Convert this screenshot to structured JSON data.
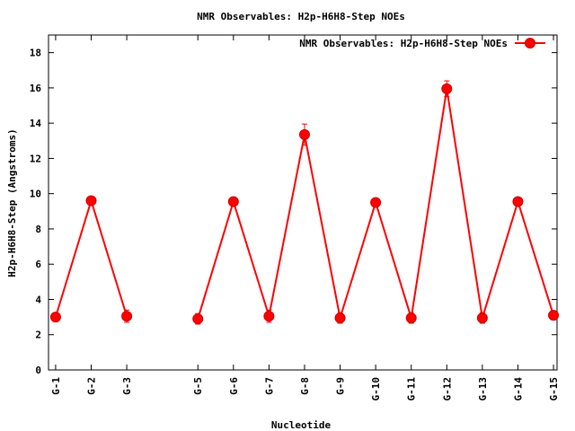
{
  "chart_data": {
    "type": "line",
    "title": "NMR Observables: H2p-H6H8-Step NOEs",
    "xlabel": "Nucleotide",
    "ylabel": "H2p-H6H8-Step (Angstroms)",
    "ylim": [
      0,
      19
    ],
    "yticks": [
      0,
      2,
      4,
      6,
      8,
      10,
      12,
      14,
      16,
      18
    ],
    "xlim": [
      0.8,
      15.1
    ],
    "grid": false,
    "legend_position": "top-right",
    "color": "#ff0000",
    "series": [
      {
        "name": "NMR Observables: H2p-H6H8-Step NOEs",
        "segments": [
          [
            {
              "x": 1,
              "label": "G-1",
              "y": 3.0,
              "err": 0.25
            },
            {
              "x": 2,
              "label": "G-2",
              "y": 9.6,
              "err": 0.2
            },
            {
              "x": 3,
              "label": "G-3",
              "y": 3.05,
              "err": 0.35
            }
          ],
          [
            {
              "x": 5,
              "label": "G-5",
              "y": 2.9,
              "err": 0.3
            },
            {
              "x": 6,
              "label": "G-6",
              "y": 9.55,
              "err": 0.2
            },
            {
              "x": 7,
              "label": "G-7",
              "y": 3.05,
              "err": 0.35
            },
            {
              "x": 8,
              "label": "G-8",
              "y": 13.35,
              "err": 0.6
            },
            {
              "x": 9,
              "label": "G-9",
              "y": 2.95,
              "err": 0.3
            },
            {
              "x": 10,
              "label": "G-10",
              "y": 9.5,
              "err": 0.2
            },
            {
              "x": 11,
              "label": "G-11",
              "y": 2.95,
              "err": 0.3
            },
            {
              "x": 12,
              "label": "G-12",
              "y": 15.95,
              "err": 0.45
            },
            {
              "x": 13,
              "label": "G-13",
              "y": 2.95,
              "err": 0.3
            },
            {
              "x": 14,
              "label": "G-14",
              "y": 9.55,
              "err": 0.2
            },
            {
              "x": 15,
              "label": "G-15",
              "y": 3.1,
              "err": 0.25
            }
          ]
        ]
      }
    ]
  }
}
